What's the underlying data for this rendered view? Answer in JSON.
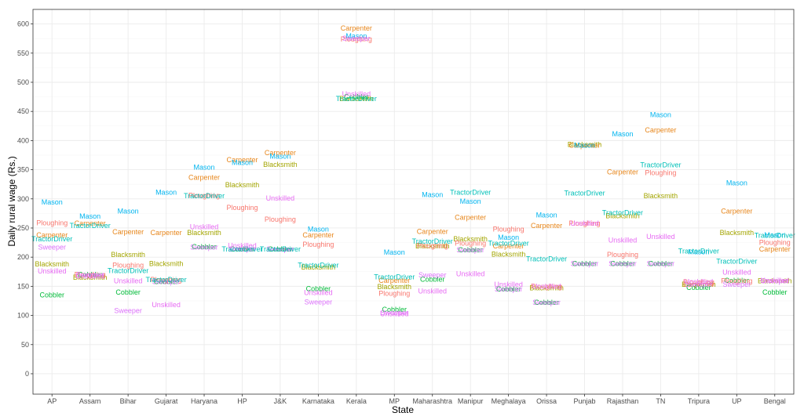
{
  "chart_data": {
    "type": "scatter",
    "xlabel": "State",
    "ylabel": "Daily rural wage (Rs.)",
    "ylim": [
      -35,
      625
    ],
    "yticks": [
      0,
      50,
      100,
      150,
      200,
      250,
      300,
      350,
      400,
      450,
      500,
      550,
      600
    ],
    "grid": true,
    "legend": "none",
    "marks": "text labels",
    "categories": [
      "AP",
      "Assam",
      "Bihar",
      "Gujarat",
      "Haryana",
      "HP",
      "J&K",
      "Karnataka",
      "Kerala",
      "MP",
      "Maharashtra",
      "Manipur",
      "Meghalaya",
      "Orissa",
      "Punjab",
      "Rajasthan",
      "TN",
      "Tripura",
      "UP",
      "Bengal"
    ],
    "series": [
      {
        "name": "Blacksmith",
        "color": "#A3A500",
        "values": [
          188,
          165,
          204,
          189,
          242,
          324,
          359,
          183,
          472,
          149,
          219,
          231,
          205,
          147,
          393,
          271,
          305,
          153,
          242,
          159
        ]
      },
      {
        "name": "Carpenter",
        "color": "#E7861B",
        "values": [
          238,
          258,
          243,
          242,
          337,
          367,
          379,
          238,
          593,
          160,
          244,
          268,
          219,
          254,
          392,
          346,
          418,
          153,
          279,
          214
        ]
      },
      {
        "name": "Cobbler",
        "color": "#00BA38",
        "values": [
          135,
          170,
          140,
          158,
          218,
          214,
          214,
          146,
          475,
          110,
          162,
          212,
          145,
          122,
          189,
          189,
          189,
          148,
          160,
          140
        ]
      },
      {
        "name": "Mason",
        "color": "#00B4EF",
        "values": [
          294,
          270,
          279,
          311,
          354,
          362,
          373,
          248,
          579,
          208,
          307,
          296,
          234,
          272,
          392,
          411,
          444,
          209,
          327,
          238
        ]
      },
      {
        "name": "Ploughing",
        "color": "#F8766D",
        "values": [
          259,
          170,
          186,
          161,
          306,
          285,
          265,
          222,
          574,
          138,
          220,
          224,
          248,
          150,
          258,
          204,
          345,
          157,
          159,
          225
        ]
      },
      {
        "name": "Sweeper",
        "color": "#DC71FA",
        "values": [
          217,
          170,
          108,
          158,
          217,
          214,
          214,
          123,
          575,
          105,
          169,
          212,
          145,
          122,
          189,
          189,
          189,
          153,
          153,
          159
        ]
      },
      {
        "name": "TractorDriver",
        "color": "#00C0B8",
        "values": [
          231,
          254,
          177,
          161,
          305,
          214,
          214,
          186,
          472,
          166,
          227,
          311,
          224,
          197,
          310,
          276,
          358,
          210,
          193,
          237
        ]
      },
      {
        "name": "Unskilled",
        "color": "#E76BF3",
        "values": [
          176,
          167,
          159,
          118,
          252,
          220,
          301,
          139,
          480,
          103,
          142,
          171,
          153,
          150,
          258,
          229,
          235,
          158,
          174,
          160
        ]
      }
    ]
  }
}
